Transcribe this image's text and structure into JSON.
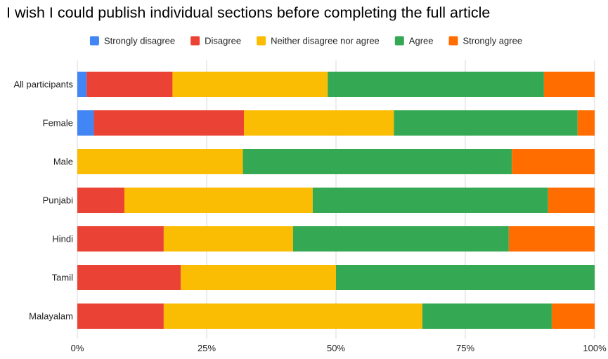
{
  "chart_data": {
    "type": "bar",
    "orientation": "horizontal",
    "stacked": "percent",
    "title": "I wish I could publish individual sections before completing the full article",
    "xlabel": "",
    "ylabel": "",
    "xlim": [
      0,
      100
    ],
    "x_ticks": [
      "0%",
      "25%",
      "50%",
      "75%",
      "100%"
    ],
    "grid": true,
    "legend_position": "top",
    "categories": [
      "All participants",
      "Female",
      "Male",
      "Punjabi",
      "Hindi",
      "Tamil",
      "Malayalam"
    ],
    "series": [
      {
        "name": "Strongly disagree",
        "color": "#4285F4",
        "values": [
          1.8,
          3.2,
          0,
          0,
          0,
          0,
          0
        ]
      },
      {
        "name": "Disagree",
        "color": "#EA4335",
        "values": [
          16.6,
          29.0,
          0,
          9.1,
          16.7,
          20.0,
          16.7
        ]
      },
      {
        "name": "Neither disagree nor agree",
        "color": "#FBBC04",
        "values": [
          30.0,
          29.0,
          32.0,
          36.4,
          25.0,
          30.0,
          50.0
        ]
      },
      {
        "name": "Agree",
        "color": "#34A853",
        "values": [
          41.8,
          35.5,
          52.0,
          45.5,
          41.7,
          50.0,
          25.0
        ]
      },
      {
        "name": "Strongly agree",
        "color": "#FF6D01",
        "values": [
          9.8,
          3.3,
          16.0,
          9.0,
          16.6,
          0,
          8.3
        ]
      }
    ]
  }
}
